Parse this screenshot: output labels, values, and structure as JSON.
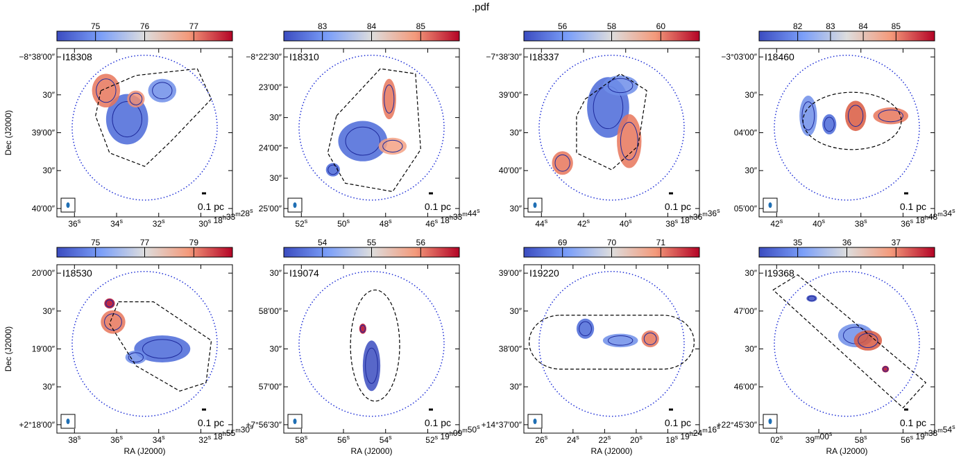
{
  "header": {
    "title": ".pdf"
  },
  "axis_labels": {
    "y": "Dec (J2000)",
    "x": "RA (J2000)"
  },
  "scalebar_label": "0.1 pc",
  "colors": {
    "low": "#3b4cc0",
    "mid": "#dddddd",
    "high": "#b40426",
    "contour": "#1e2a9c",
    "beam_circle": "#1c2dd6"
  },
  "panels": [
    {
      "name": "I18308",
      "cbar_ticks": [
        "75",
        "76",
        "77"
      ],
      "dec_ticks": [
        "−8°38′00″",
        "30″",
        "39′00″",
        "30″",
        "40′00″"
      ],
      "ra_ticks": [
        "36s",
        "34s",
        "32s",
        "30s 18h33m28s"
      ]
    },
    {
      "name": "I18310",
      "cbar_ticks": [
        "83",
        "84",
        "85"
      ],
      "dec_ticks": [
        "−8°22′30″",
        "23′00″",
        "30″",
        "24′00″",
        "30″",
        "25′00″"
      ],
      "ra_ticks": [
        "52s",
        "50s",
        "48s",
        "46s 18h33m44s"
      ]
    },
    {
      "name": "I18337",
      "cbar_ticks": [
        "56",
        "58",
        "60"
      ],
      "dec_ticks": [
        "−7°38′30″",
        "39′00″",
        "30″",
        "40′00″",
        "30″"
      ],
      "ra_ticks": [
        "44s",
        "42s",
        "40s",
        "38s 18h36m36s"
      ]
    },
    {
      "name": "I18460",
      "cbar_ticks": [
        "82",
        "83",
        "84",
        "85"
      ],
      "dec_ticks": [
        "−3°03′00″",
        "30″",
        "04′00″",
        "30″",
        "05′00″"
      ],
      "ra_ticks": [
        "42s",
        "40s",
        "38s",
        "36s 18h48m34s"
      ]
    },
    {
      "name": "I18530",
      "cbar_ticks": [
        "75",
        "77",
        "79"
      ],
      "dec_ticks": [
        "20′00″",
        "30″",
        "19′00″",
        "30″",
        "+2°18′00″"
      ],
      "ra_ticks": [
        "38s",
        "36s",
        "34s",
        "32s 18h55m30s"
      ]
    },
    {
      "name": "I19074",
      "cbar_ticks": [
        "54",
        "55",
        "56"
      ],
      "dec_ticks": [
        "30″",
        "58′00″",
        "30″",
        "57′00″",
        "+7°56′30″"
      ],
      "ra_ticks": [
        "58s",
        "56s",
        "54s",
        "52s 19h09m50s"
      ]
    },
    {
      "name": "I19220",
      "cbar_ticks": [
        "69",
        "70",
        "71"
      ],
      "dec_ticks": [
        "39′00″",
        "30″",
        "38′00″",
        "30″",
        "+14°37′00″"
      ],
      "ra_ticks": [
        "26s",
        "24s",
        "22s",
        "20s",
        "18s 19h24m16s"
      ]
    },
    {
      "name": "I19368",
      "cbar_ticks": [
        "35",
        "36",
        "37"
      ],
      "dec_ticks": [
        "30″",
        "47′00″",
        "30″",
        "46′00″",
        "+22°45′30″"
      ],
      "ra_ticks": [
        "02s",
        "39m00s",
        "58s",
        "56s 19h38m54s"
      ]
    }
  ]
}
